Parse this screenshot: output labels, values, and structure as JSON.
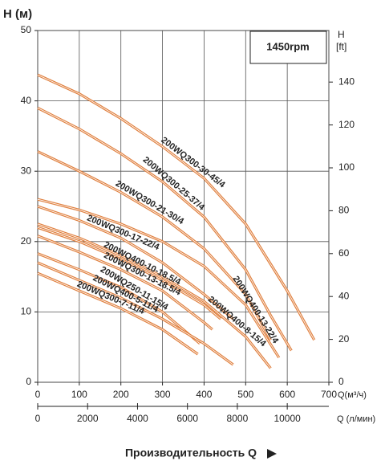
{
  "chart_data": {
    "type": "line",
    "annotation": "1450rpm",
    "y_label": "H (м)",
    "y2_label": [
      "H",
      "[ft]"
    ],
    "x_label": "Q(м³/ч)",
    "x2_label": "Q (л/мин)",
    "footer": "Производительность Q",
    "xlim": [
      0,
      700
    ],
    "xticks": [
      0,
      100,
      200,
      300,
      400,
      500,
      600,
      700
    ],
    "x2lim": [
      0,
      11666.7
    ],
    "x2ticks": [
      0,
      2000,
      4000,
      6000,
      8000,
      10000
    ],
    "ylim": [
      0,
      50
    ],
    "yticks": [
      0,
      10,
      20,
      30,
      40,
      50
    ],
    "y2lim": [
      0,
      164.04
    ],
    "y2ticks": [
      0,
      20,
      40,
      60,
      80,
      100,
      120,
      140
    ],
    "grid": true,
    "series": [
      {
        "name": "200WQ300-30-45/4",
        "color": "#e0803f",
        "x": [
          0,
          100,
          200,
          300,
          400,
          500,
          600,
          665
        ],
        "values": [
          43.7,
          41,
          37.5,
          33.5,
          29,
          22.5,
          13,
          6
        ]
      },
      {
        "name": "200WQ300-25-37/4",
        "color": "#e0803f",
        "x": [
          0,
          100,
          200,
          300,
          400,
          500,
          560,
          610
        ],
        "values": [
          39,
          36,
          32.5,
          28.5,
          23.5,
          16,
          9.5,
          4.5
        ]
      },
      {
        "name": "200WQ300-21-30/4",
        "color": "#e0803f",
        "x": [
          0,
          100,
          200,
          300,
          400,
          500,
          560
        ],
        "values": [
          32.8,
          30,
          27,
          23.5,
          19,
          12.5,
          6
        ]
      },
      {
        "name": "200WQ400-13-22/4",
        "color": "#e0803f",
        "x": [
          0,
          100,
          200,
          300,
          400,
          500,
          580
        ],
        "values": [
          26,
          24.5,
          22.5,
          20,
          16.5,
          11,
          3.5
        ]
      },
      {
        "name": "200WQ300-17-22/4",
        "color": "#e0803f",
        "x": [
          0,
          100,
          200,
          300,
          400,
          470
        ],
        "values": [
          25,
          23,
          20.5,
          17,
          12.5,
          9
        ]
      },
      {
        "name": "200WQ400-8-15/4",
        "color": "#e0803f",
        "x": [
          0,
          100,
          200,
          300,
          400,
          500,
          560
        ],
        "values": [
          22.5,
          20.5,
          18,
          15,
          11.5,
          6.5,
          2
        ]
      },
      {
        "name": "200WQ400-10-18.5/4",
        "color": "#e0803f",
        "x": [
          0,
          100,
          200,
          300,
          400,
          440
        ],
        "values": [
          22,
          20,
          17.5,
          14.5,
          11,
          9
        ]
      },
      {
        "name": "200WQ300-13-18.5/4",
        "color": "#e0803f",
        "x": [
          0,
          100,
          200,
          300,
          400,
          420
        ],
        "values": [
          20.8,
          18.5,
          16,
          13,
          8.5,
          7.5
        ]
      },
      {
        "name": "200WQ250-11-15/4",
        "color": "#e0803f",
        "x": [
          0,
          100,
          200,
          300,
          390
        ],
        "values": [
          18.3,
          16,
          13.5,
          10,
          5.5
        ]
      },
      {
        "name": "200WQ400-5-11/4",
        "color": "#e0803f",
        "x": [
          0,
          100,
          200,
          300,
          400,
          470
        ],
        "values": [
          17,
          14.5,
          12,
          9,
          5.5,
          2.5
        ]
      },
      {
        "name": "200WQ300-7-11/4",
        "color": "#e0803f",
        "x": [
          0,
          100,
          200,
          300,
          385
        ],
        "values": [
          15.5,
          13,
          10.5,
          7.5,
          4
        ]
      }
    ]
  }
}
